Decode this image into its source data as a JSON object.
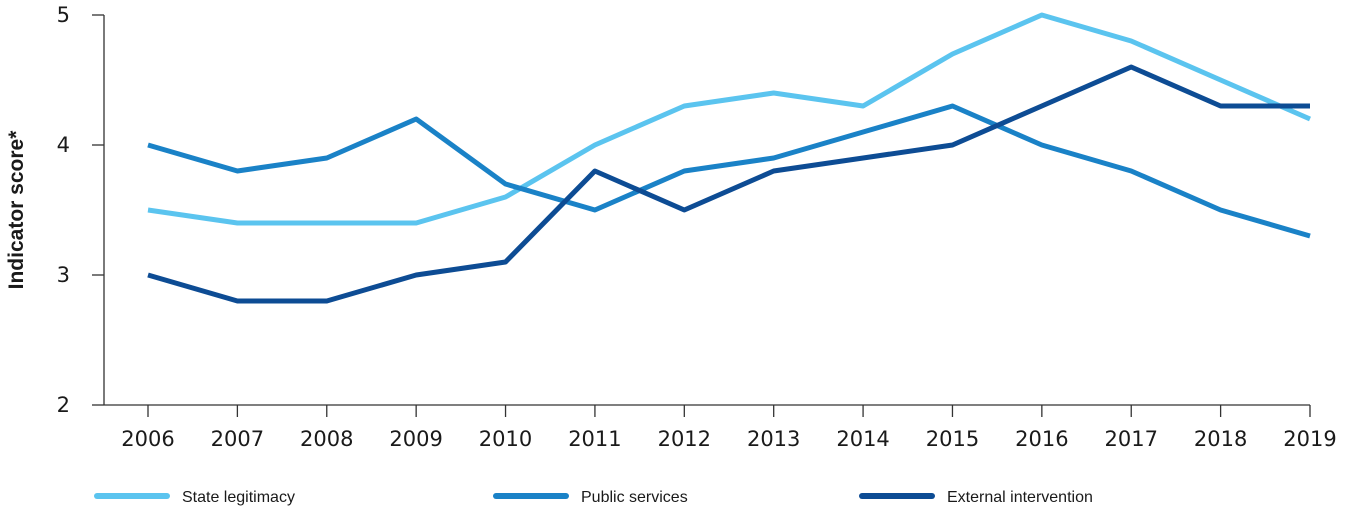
{
  "chart_data": {
    "type": "line",
    "title": "",
    "xlabel": "",
    "ylabel": "Indicator score*",
    "ylim": [
      2,
      5
    ],
    "yticks": [
      2,
      3,
      4,
      5
    ],
    "grid": false,
    "legend_position": "bottom",
    "categories": [
      "2006",
      "2007",
      "2008",
      "2009",
      "2010",
      "2011",
      "2012",
      "2013",
      "2014",
      "2015",
      "2016",
      "2017",
      "2018",
      "2019"
    ],
    "series": [
      {
        "name": "State legitimacy",
        "color": "#5bc4ef",
        "values": [
          3.5,
          3.4,
          3.4,
          3.4,
          3.6,
          4.0,
          4.3,
          4.4,
          4.3,
          4.7,
          5.0,
          4.8,
          4.5,
          4.2
        ]
      },
      {
        "name": "Public services",
        "color": "#1a82c7",
        "values": [
          4.0,
          3.8,
          3.9,
          4.2,
          3.7,
          3.5,
          3.8,
          3.9,
          4.1,
          4.3,
          4.0,
          3.8,
          3.5,
          3.3
        ]
      },
      {
        "name": "External intervention",
        "color": "#0d4c94",
        "values": [
          3.0,
          2.8,
          2.8,
          3.0,
          3.1,
          3.8,
          3.5,
          3.8,
          3.9,
          4.0,
          4.3,
          4.6,
          4.3,
          4.3
        ]
      }
    ]
  }
}
